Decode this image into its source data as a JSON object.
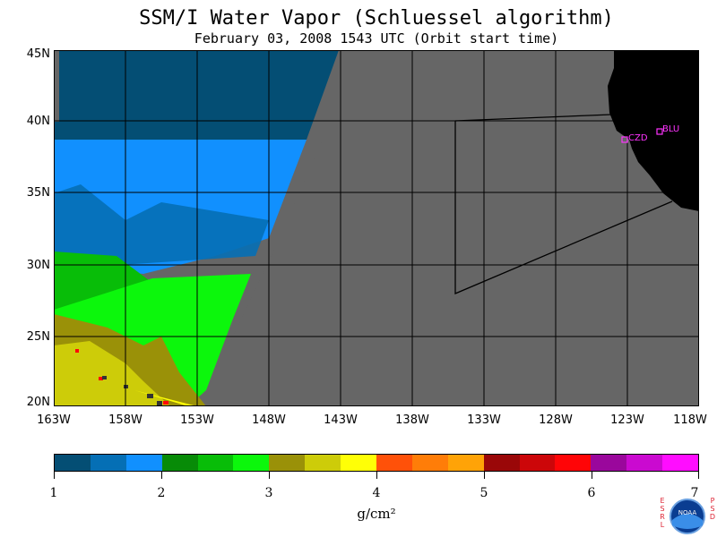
{
  "header": {
    "title": "SSM/I Water Vapor (Schluessel algorithm)",
    "subtitle": "February 03, 2008  1543 UTC  (Orbit start time)"
  },
  "map": {
    "lat_labels": [
      "45N",
      "40N",
      "35N",
      "30N",
      "25N",
      "20N"
    ],
    "lon_labels": [
      "163W",
      "158W",
      "153W",
      "148W",
      "143W",
      "138W",
      "133W",
      "128W",
      "123W",
      "118W"
    ],
    "stations": [
      {
        "id": "CZD",
        "name": "CZD"
      },
      {
        "id": "BLU",
        "name": "BLU"
      }
    ],
    "colors": {
      "no_data": "#666666",
      "land": "#000000",
      "gridline": "#000000",
      "station": "#ff33ff"
    }
  },
  "colorbar": {
    "ticks": [
      "1",
      "2",
      "3",
      "4",
      "5",
      "6",
      "7"
    ],
    "units": "g/cm²",
    "swatches": [
      "#044e74",
      "#056fb5",
      "#1190fe",
      "#078b07",
      "#08bd08",
      "#0cf70c",
      "#9a9108",
      "#cdcc09",
      "#ffff06",
      "#ff5109",
      "#ff7d08",
      "#ffa307",
      "#9a0708",
      "#cc0609",
      "#ff0507",
      "#9a079c",
      "#ca0ad0",
      "#ff0dff"
    ]
  },
  "logo": {
    "left_text": "ESRL",
    "right_text": "PSD",
    "center_text": "NOAA"
  }
}
